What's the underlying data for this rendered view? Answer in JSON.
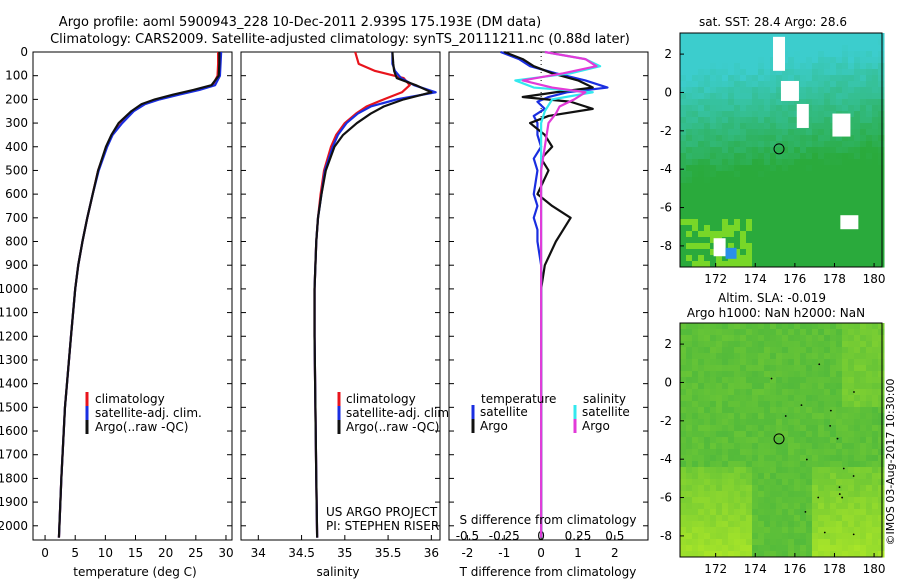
{
  "colors": {
    "climatology": "#e8141c",
    "satellite_adj": "#1a2ee0",
    "argo": "#111111",
    "s_satellite": "#33e8ee",
    "s_argo": "#e23ad8",
    "map_land": "#ffffff"
  },
  "header": {
    "title_line1": "Argo profile: aoml 5900943_228 10-Dec-2011 2.939S 175.193E (DM data)",
    "title_line2": "Climatology: CARS2009. Satellite-adjusted climatology: synTS_20111211.nc (0.88d later)"
  },
  "chart_data": [
    {
      "id": "temperature",
      "type": "line",
      "xlabel": "temperature (deg C)",
      "ylabel": "",
      "xlim": [
        -2,
        31
      ],
      "ylim": [
        2060,
        0
      ],
      "xticks": [
        0,
        5,
        10,
        15,
        20,
        25,
        30
      ],
      "xtick_labels": [
        "0",
        "5",
        "10",
        "15",
        "20",
        "25",
        "30"
      ],
      "yticks": [
        0,
        100,
        200,
        300,
        400,
        500,
        600,
        700,
        800,
        900,
        1000,
        1100,
        1200,
        1300,
        1400,
        1500,
        1600,
        1700,
        1800,
        1900,
        2000
      ],
      "ytick_labels": [
        "0",
        "100",
        "200",
        "300",
        "400",
        "500",
        "600",
        "700",
        "800",
        "900",
        "1000",
        "1100",
        "1200",
        "1300",
        "1400",
        "1500",
        "1600",
        "1700",
        "1800",
        "1900",
        "2000"
      ],
      "legend": {
        "position": "center",
        "entries": [
          {
            "label": "climatology",
            "series": "climatology"
          },
          {
            "label": "satellite-adj. clim.",
            "series": "satellite"
          },
          {
            "label": "Argo(..raw -QC)",
            "series": "argo"
          }
        ]
      },
      "series": [
        {
          "name": "climatology",
          "color_key": "climatology",
          "depth": [
            0,
            50,
            100,
            140,
            160,
            180,
            200,
            220,
            250,
            300,
            350,
            400,
            500,
            600,
            700,
            800,
            900,
            1000,
            1200,
            1500,
            1800,
            2050
          ],
          "values": [
            28.7,
            28.7,
            28.6,
            27.8,
            25.2,
            21.8,
            18.8,
            16.5,
            14.6,
            12.7,
            11.1,
            10.2,
            8.8,
            7.9,
            7.0,
            6.2,
            5.5,
            5.0,
            4.3,
            3.3,
            2.7,
            2.3
          ]
        },
        {
          "name": "satellite",
          "color_key": "satellite_adj",
          "depth": [
            0,
            50,
            100,
            140,
            160,
            180,
            200,
            220,
            250,
            300,
            350,
            400,
            500,
            600,
            700,
            800,
            900,
            1000,
            1200,
            1500,
            1800,
            2050
          ],
          "values": [
            29.2,
            29.1,
            29.0,
            28.2,
            25.6,
            22.2,
            19.0,
            16.6,
            14.7,
            12.8,
            11.2,
            10.3,
            8.9,
            7.9,
            7.0,
            6.2,
            5.5,
            5.0,
            4.3,
            3.3,
            2.7,
            2.3
          ]
        },
        {
          "name": "argo",
          "color_key": "argo",
          "depth": [
            0,
            50,
            100,
            140,
            160,
            180,
            200,
            220,
            250,
            300,
            350,
            400,
            500,
            600,
            700,
            800,
            900,
            1000,
            1200,
            1500,
            1800,
            2050
          ],
          "values": [
            28.9,
            28.9,
            28.8,
            27.6,
            24.6,
            21.2,
            18.2,
            16.0,
            14.3,
            12.2,
            11.0,
            10.1,
            8.8,
            7.9,
            7.0,
            6.2,
            5.5,
            5.0,
            4.3,
            3.3,
            2.7,
            2.3
          ]
        }
      ]
    },
    {
      "id": "salinity",
      "type": "line",
      "xlabel": "salinity",
      "xlim": [
        33.8,
        36.1
      ],
      "ylim": [
        2060,
        0
      ],
      "xticks": [
        34,
        34.5,
        35,
        35.5,
        36
      ],
      "xtick_labels": [
        "34",
        "34.5",
        "35",
        "35.5",
        "36"
      ],
      "legend": {
        "position": "center",
        "entries": [
          {
            "label": "climatology",
            "series": "climatology"
          },
          {
            "label": "satellite-adj. clim.",
            "series": "satellite"
          },
          {
            "label": "Argo(..raw -QC)",
            "series": "argo"
          }
        ]
      },
      "annotations": [
        "US ARGO PROJECT",
        "PI: STEPHEN RISER"
      ],
      "series": [
        {
          "name": "climatology",
          "color_key": "climatology",
          "depth": [
            0,
            50,
            80,
            110,
            140,
            170,
            200,
            230,
            260,
            300,
            350,
            400,
            500,
            600,
            700,
            800,
            900,
            1000,
            1200,
            1500,
            1800,
            2050
          ],
          "values": [
            35.12,
            35.16,
            35.35,
            35.68,
            35.75,
            35.66,
            35.45,
            35.25,
            35.13,
            35.0,
            34.9,
            34.84,
            34.76,
            34.72,
            34.69,
            34.67,
            34.66,
            34.65,
            34.65,
            34.66,
            34.67,
            34.68
          ]
        },
        {
          "name": "satellite",
          "color_key": "satellite_adj",
          "depth": [
            0,
            50,
            80,
            110,
            140,
            170,
            200,
            230,
            260,
            300,
            350,
            400,
            500,
            600,
            700,
            800,
            900,
            1000,
            1200,
            1500,
            1800,
            2050
          ],
          "values": [
            35.55,
            35.55,
            35.58,
            35.65,
            35.8,
            36.05,
            35.6,
            35.3,
            35.15,
            35.02,
            34.92,
            34.86,
            34.77,
            34.73,
            34.69,
            34.67,
            34.66,
            34.65,
            34.65,
            34.66,
            34.67,
            34.68
          ]
        },
        {
          "name": "argo",
          "color_key": "argo",
          "depth": [
            0,
            50,
            80,
            110,
            140,
            170,
            200,
            230,
            260,
            300,
            350,
            400,
            500,
            600,
            700,
            800,
            900,
            1000,
            1200,
            1500,
            1800,
            2050
          ],
          "values": [
            35.55,
            35.56,
            35.57,
            35.6,
            35.82,
            36.0,
            35.68,
            35.45,
            35.3,
            35.14,
            34.98,
            34.88,
            34.78,
            34.73,
            34.69,
            34.67,
            34.66,
            34.65,
            34.65,
            34.66,
            34.67,
            34.68
          ]
        }
      ]
    },
    {
      "id": "difference",
      "type": "line",
      "xlabel": "T difference from climatology",
      "top_label": "S difference from climatology",
      "xlim": [
        -2.5,
        2.9
      ],
      "ylim": [
        2060,
        0
      ],
      "xticks": [
        -2,
        -1,
        0,
        1,
        2
      ],
      "xtick_labels": [
        "-2",
        "-1",
        "0",
        "1",
        "2"
      ],
      "s_ticks": [
        -0.5,
        -0.25,
        0,
        0.25,
        0.5
      ],
      "s_tick_labels": [
        "-0.5",
        "-0.25",
        "0",
        "0.25",
        "0.5"
      ],
      "s_scale": 4,
      "legend": {
        "position": "center",
        "headers": [
          "temperature",
          "salinity"
        ],
        "entries": [
          {
            "label": "satellite",
            "series": "t_satellite"
          },
          {
            "label": "Argo",
            "series": "t_argo"
          },
          {
            "label": "satellite",
            "series": "s_satellite"
          },
          {
            "label": "Argo",
            "series": "s_argo"
          }
        ]
      },
      "series": [
        {
          "name": "t_satellite",
          "color_key": "satellite_adj",
          "depth": [
            0,
            30,
            60,
            90,
            120,
            150,
            170,
            190,
            210,
            240,
            270,
            300,
            350,
            400,
            450,
            500,
            600,
            650,
            700,
            750,
            800,
            900,
            1000,
            1500,
            2050
          ],
          "values": [
            -1.1,
            -0.6,
            -0.3,
            0.4,
            1.2,
            1.8,
            0.7,
            0.2,
            -0.1,
            0.1,
            -0.2,
            -0.1,
            -0.1,
            0.0,
            -0.2,
            -0.1,
            -0.2,
            -0.1,
            -0.2,
            -0.1,
            -0.1,
            0.0,
            0.0,
            0.0,
            0.0
          ]
        },
        {
          "name": "t_argo",
          "color_key": "argo",
          "depth": [
            0,
            30,
            60,
            90,
            120,
            150,
            170,
            190,
            210,
            240,
            270,
            300,
            350,
            400,
            450,
            500,
            600,
            650,
            700,
            750,
            800,
            900,
            1000,
            1500,
            2050
          ],
          "values": [
            -1.0,
            -0.5,
            -0.2,
            0.3,
            1.0,
            1.4,
            0.4,
            -0.5,
            0.8,
            1.4,
            0.2,
            -0.3,
            0.1,
            0.3,
            0.0,
            0.2,
            -0.1,
            0.3,
            0.8,
            0.6,
            0.4,
            0.1,
            0.0,
            0.0,
            0.0
          ]
        },
        {
          "name": "s_satellite",
          "color_key": "s_satellite",
          "depth": [
            0,
            30,
            60,
            90,
            120,
            150,
            170,
            200,
            250,
            300,
            400,
            500,
            700,
            900,
            1000,
            1500,
            2050
          ],
          "values": [
            0.1,
            1.2,
            1.6,
            0.8,
            -0.7,
            -0.2,
            1.4,
            0.3,
            0.1,
            0.0,
            0.0,
            0.0,
            0.0,
            0.0,
            0.0,
            0.0,
            0.0
          ]
        },
        {
          "name": "s_argo",
          "color_key": "s_argo",
          "depth": [
            0,
            30,
            60,
            90,
            120,
            150,
            170,
            200,
            230,
            260,
            300,
            400,
            500,
            700,
            900,
            1000,
            1500,
            2050
          ],
          "values": [
            0.1,
            1.2,
            1.5,
            0.6,
            -0.5,
            0.3,
            1.2,
            0.9,
            0.5,
            0.4,
            0.2,
            0.1,
            0.0,
            0.0,
            0.0,
            0.0,
            0.0,
            0.0
          ]
        }
      ]
    },
    {
      "id": "map_sst",
      "type": "heatmap",
      "title": "sat. SST: 28.4 Argo: 28.6",
      "xlim": [
        170.2,
        180.4
      ],
      "ylim": [
        -9.1,
        3.1
      ],
      "xticks": [
        172,
        174,
        176,
        178,
        180
      ],
      "xtick_labels": [
        "172",
        "174",
        "176",
        "178",
        "180"
      ],
      "yticks": [
        2,
        0,
        -2,
        -4,
        -6,
        -8
      ],
      "ytick_labels": [
        "2",
        "0",
        "-2",
        "-4",
        "-6",
        "-8"
      ],
      "marker": {
        "lon": 175.2,
        "lat": -2.94,
        "label": "Argo position"
      }
    },
    {
      "id": "map_sla",
      "type": "heatmap",
      "title_line1": "Altim. SLA: -0.019",
      "title_line2": "Argo h1000: NaN h2000: NaN",
      "xlim": [
        170.2,
        180.4
      ],
      "ylim": [
        -9.1,
        3.1
      ],
      "xticks": [
        172,
        174,
        176,
        178,
        180
      ],
      "xtick_labels": [
        "172",
        "174",
        "176",
        "178",
        "180"
      ],
      "yticks": [
        2,
        0,
        -2,
        -4,
        -6,
        -8
      ],
      "ytick_labels": [
        "2",
        "0",
        "-2",
        "-4",
        "-6",
        "-8"
      ],
      "marker": {
        "lon": 175.2,
        "lat": -2.94,
        "label": "Argo position"
      }
    }
  ],
  "footer": {
    "credit": "©IMOS 03-Aug-2017 10:30:00"
  }
}
